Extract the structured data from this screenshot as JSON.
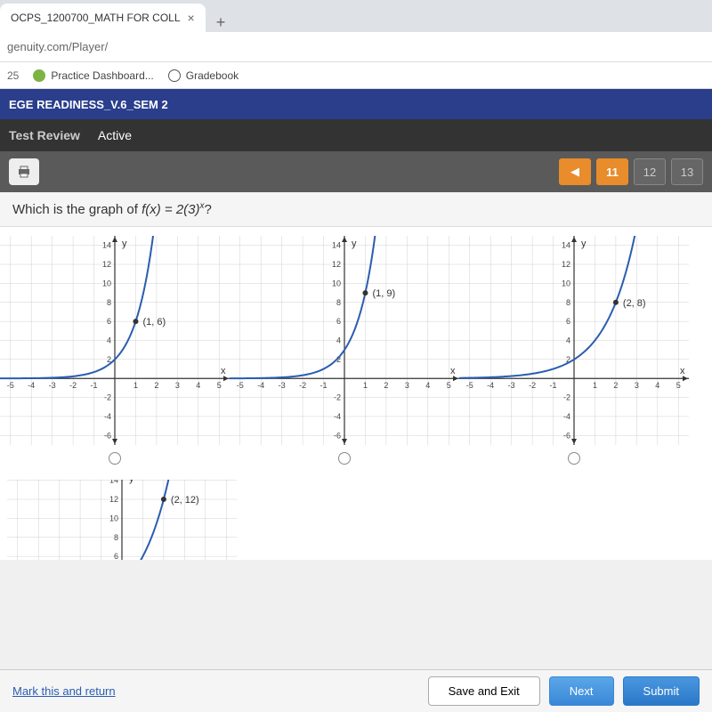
{
  "browser": {
    "tab_title": "OCPS_1200700_MATH FOR COLL",
    "url": "genuity.com/Player/",
    "bookmarks": {
      "num": "25",
      "practice": "Practice Dashboard...",
      "gradebook": "Gradebook"
    }
  },
  "course": {
    "title": "EGE READINESS_V.6_SEM 2"
  },
  "status": {
    "label": "Test Review",
    "active": "Active"
  },
  "nav": {
    "items": [
      "◀",
      "11",
      "12",
      "13"
    ],
    "active_index": 1
  },
  "question": {
    "prefix": "Which is the graph of ",
    "func_text": "f(x) = 2(3)",
    "exp": "x",
    "suffix": "?"
  },
  "graphs": {
    "axis": {
      "x_ticks": [
        -5,
        -4,
        -3,
        -2,
        -1,
        1,
        2,
        3,
        4,
        5
      ],
      "y_ticks": [
        -6,
        -4,
        -2,
        2,
        4,
        6,
        8,
        10,
        12,
        14
      ],
      "xlim": [
        -5.5,
        5.5
      ],
      "ylim": [
        -7,
        15
      ],
      "grid_color": "#d0d0d0",
      "axis_color": "#333333",
      "tick_fontsize": 9,
      "label_y": "y",
      "label_x": "x"
    },
    "curve_color": "#2a5db0",
    "curve_width": 2,
    "point_color": "#333333",
    "options": [
      {
        "point": [
          1,
          6
        ],
        "point_label": "(1, 6)",
        "a": 2,
        "b": 3
      },
      {
        "point": [
          1,
          9
        ],
        "point_label": "(1, 9)",
        "a": 3,
        "b": 3
      },
      {
        "point": [
          2,
          8
        ],
        "point_label": "(2, 8)",
        "a": 2,
        "b": 2
      },
      {
        "point": [
          2,
          12
        ],
        "point_label": "(2, 12)",
        "a": 3,
        "b": 2,
        "partial": true
      }
    ]
  },
  "footer": {
    "mark": "Mark this and return",
    "save": "Save and Exit",
    "next": "Next",
    "submit": "Submit"
  },
  "colors": {
    "course_bar": "#2a3e8c",
    "active_nav": "#e88c2c"
  }
}
